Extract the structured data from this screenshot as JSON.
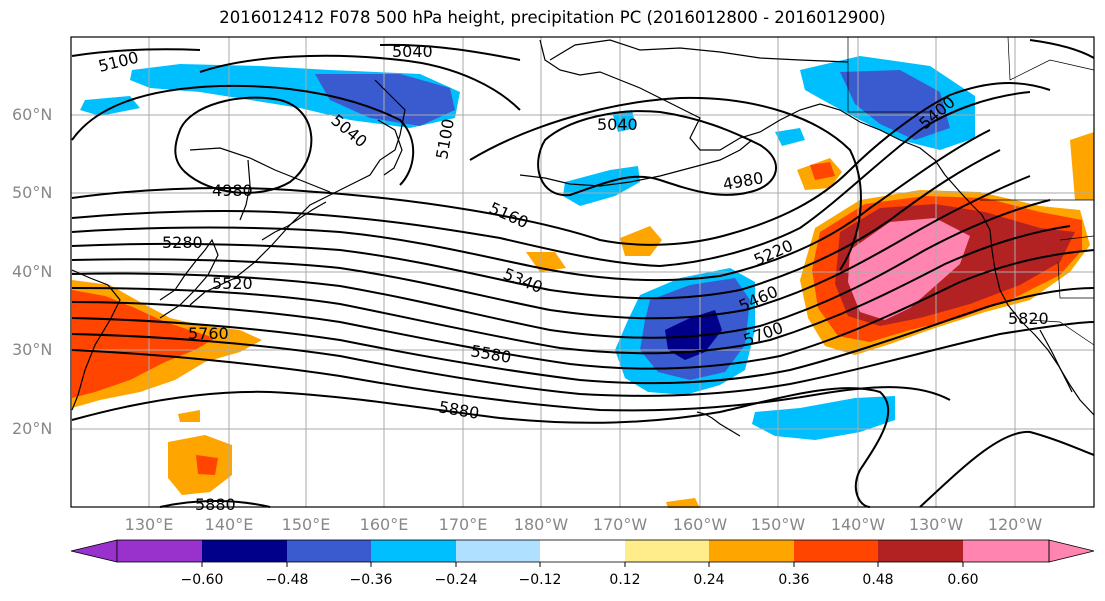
{
  "title": "2016012412 F078 500 hPa height, precipitation PC (2016012800 - 2016012900)",
  "lat_labels": [
    "60°N",
    "50°N",
    "40°N",
    "30°N",
    "20°N"
  ],
  "lon_labels": [
    "130°E",
    "140°E",
    "150°E",
    "160°E",
    "170°E",
    "180°W",
    "170°W",
    "160°W",
    "150°W",
    "140°W",
    "130°W",
    "120°W"
  ],
  "contour_labels": [
    "5100",
    "5040",
    "5040",
    "5100",
    "4980",
    "5040",
    "4980",
    "5400",
    "5160",
    "5280",
    "5220",
    "5340",
    "5520",
    "5460",
    "5760",
    "5700",
    "5580",
    "5820",
    "5880",
    "5880"
  ],
  "colorbar": {
    "ticks": [
      "−0.60",
      "−0.48",
      "−0.36",
      "−0.24",
      "−0.12",
      "0.12",
      "0.24",
      "0.36",
      "0.48",
      "0.60"
    ],
    "colors": [
      "#9932cc",
      "#00008b",
      "#3a5bd0",
      "#00bfff",
      "#b0e0ff",
      "#ffffff",
      "#ffec8b",
      "#ffa500",
      "#ff4500",
      "#b22222",
      "#ff85b0",
      "#ff85b0"
    ]
  },
  "colors": {
    "neg_light": "#00bfff",
    "neg_mid": "#3a5bd0",
    "neg_dark": "#00008b",
    "pos_yellow": "#ffec8b",
    "pos_orange": "#ffa500",
    "pos_redorange": "#ff4500",
    "pos_darkred": "#b22222",
    "pos_pink": "#ff85b0"
  }
}
